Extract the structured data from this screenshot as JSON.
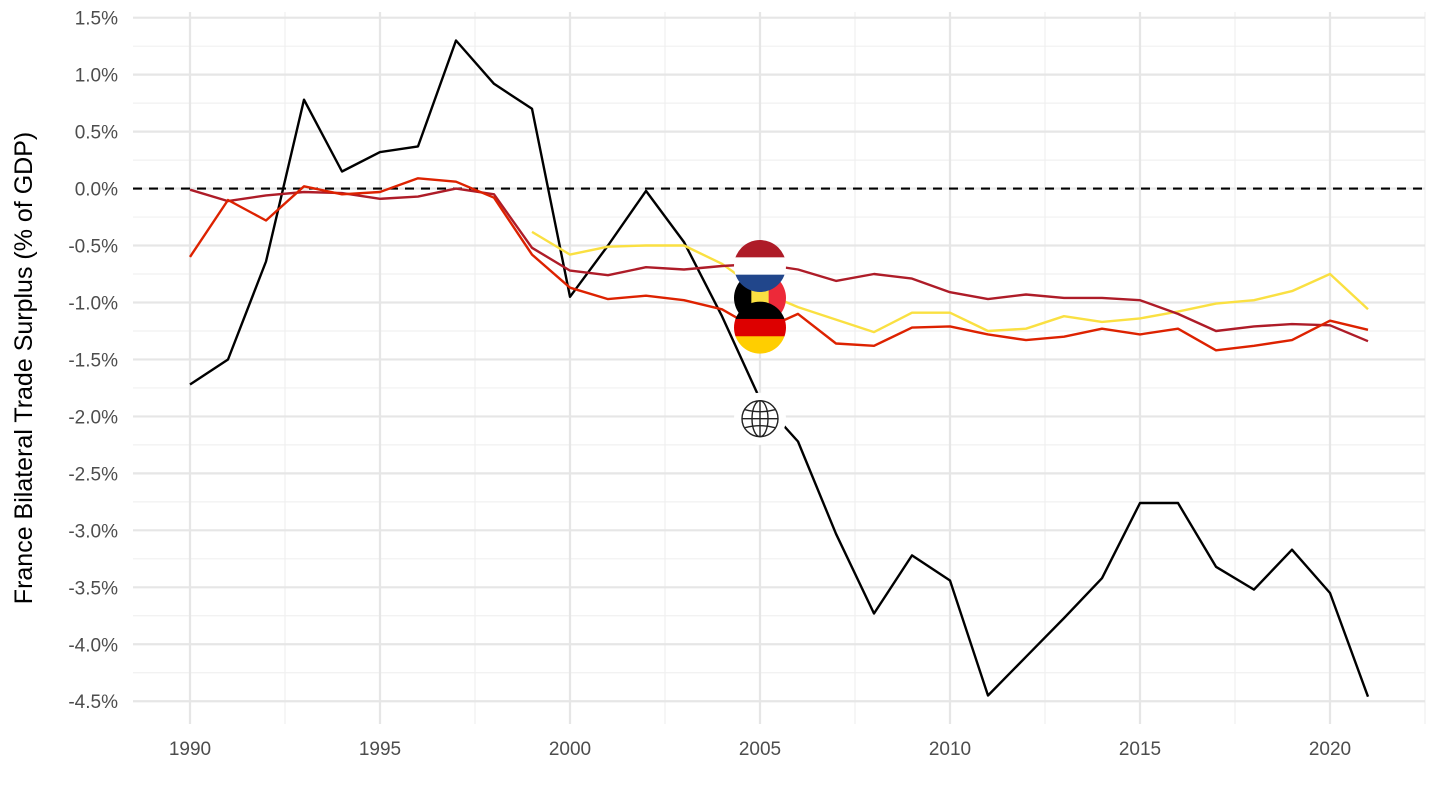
{
  "chart_data": {
    "type": "line",
    "title": "",
    "xlabel": "",
    "ylabel": "France Bilateral Trade Surplus (% of GDP)",
    "xlim": [
      1988.5,
      2022.5
    ],
    "ylim": [
      -4.7,
      1.55
    ],
    "x_ticks": [
      1990,
      1995,
      2000,
      2005,
      2010,
      2015,
      2020
    ],
    "y_ticks": [
      {
        "value": 1.5,
        "label": "1.5%"
      },
      {
        "value": 1.0,
        "label": "1.0%"
      },
      {
        "value": 0.5,
        "label": "0.5%"
      },
      {
        "value": 0.0,
        "label": "0.0%"
      },
      {
        "value": -0.5,
        "label": "-0.5%"
      },
      {
        "value": -1.0,
        "label": "-1.0%"
      },
      {
        "value": -1.5,
        "label": "-1.5%"
      },
      {
        "value": -2.0,
        "label": "-2.0%"
      },
      {
        "value": -2.5,
        "label": "-2.5%"
      },
      {
        "value": -3.0,
        "label": "-3.0%"
      },
      {
        "value": -3.5,
        "label": "-3.5%"
      },
      {
        "value": -4.0,
        "label": "-4.0%"
      },
      {
        "value": -4.5,
        "label": "-4.5%"
      }
    ],
    "grid": true,
    "reference_line": {
      "y": 0,
      "style": "dashed",
      "color": "#000000"
    },
    "series": [
      {
        "icon": "globe-icon",
        "color": "#000000",
        "label_x": 2005,
        "label_y": -2.02,
        "points": [
          [
            1990,
            -1.72
          ],
          [
            1991,
            -1.5
          ],
          [
            1992,
            -0.64
          ],
          [
            1993,
            0.78
          ],
          [
            1994,
            0.15
          ],
          [
            1995,
            0.32
          ],
          [
            1996,
            0.37
          ],
          [
            1997,
            1.3
          ],
          [
            1998,
            0.92
          ],
          [
            1999,
            0.7
          ],
          [
            2000,
            -0.95
          ],
          [
            2001,
            -0.5
          ],
          [
            2002,
            -0.02
          ],
          [
            2003,
            -0.47
          ],
          [
            2004,
            -1.12
          ],
          [
            2005,
            -1.85
          ],
          [
            2006,
            -2.22
          ],
          [
            2007,
            -3.03
          ],
          [
            2008,
            -3.73
          ],
          [
            2009,
            -3.22
          ],
          [
            2010,
            -3.44
          ],
          [
            2011,
            -4.45
          ],
          [
            2012,
            -4.11
          ],
          [
            2013,
            -3.77
          ],
          [
            2014,
            -3.42
          ],
          [
            2015,
            -2.76
          ],
          [
            2016,
            -2.76
          ],
          [
            2017,
            -3.32
          ],
          [
            2018,
            -3.52
          ],
          [
            2019,
            -3.17
          ],
          [
            2020,
            -3.55
          ],
          [
            2021,
            -4.46
          ]
        ]
      },
      {
        "icon": "belgium-flag-icon",
        "color": "#FAE042",
        "label_x": 2005,
        "label_y": -0.96,
        "points": [
          [
            1999,
            -0.38
          ],
          [
            2000,
            -0.58
          ],
          [
            2001,
            -0.51
          ],
          [
            2002,
            -0.5
          ],
          [
            2003,
            -0.5
          ],
          [
            2004,
            -0.66
          ],
          [
            2005,
            -0.9
          ],
          [
            2006,
            -1.04
          ],
          [
            2007,
            -1.15
          ],
          [
            2008,
            -1.26
          ],
          [
            2009,
            -1.09
          ],
          [
            2010,
            -1.09
          ],
          [
            2011,
            -1.25
          ],
          [
            2012,
            -1.23
          ],
          [
            2013,
            -1.12
          ],
          [
            2014,
            -1.17
          ],
          [
            2015,
            -1.14
          ],
          [
            2016,
            -1.08
          ],
          [
            2017,
            -1.01
          ],
          [
            2018,
            -0.98
          ],
          [
            2019,
            -0.9
          ],
          [
            2020,
            -0.75
          ],
          [
            2021,
            -1.06
          ]
        ]
      },
      {
        "icon": "netherlands-flag-icon",
        "color": "#AE1C28",
        "label_x": 2005,
        "label_y": -0.68,
        "points": [
          [
            1990,
            -0.01
          ],
          [
            1991,
            -0.11
          ],
          [
            1992,
            -0.06
          ],
          [
            1993,
            -0.03
          ],
          [
            1994,
            -0.04
          ],
          [
            1995,
            -0.09
          ],
          [
            1996,
            -0.07
          ],
          [
            1997,
            0.0
          ],
          [
            1998,
            -0.05
          ],
          [
            1999,
            -0.52
          ],
          [
            2000,
            -0.72
          ],
          [
            2001,
            -0.76
          ],
          [
            2002,
            -0.69
          ],
          [
            2003,
            -0.71
          ],
          [
            2004,
            -0.68
          ],
          [
            2005,
            -0.66
          ],
          [
            2006,
            -0.71
          ],
          [
            2007,
            -0.81
          ],
          [
            2008,
            -0.75
          ],
          [
            2009,
            -0.79
          ],
          [
            2010,
            -0.91
          ],
          [
            2011,
            -0.97
          ],
          [
            2012,
            -0.93
          ],
          [
            2013,
            -0.96
          ],
          [
            2014,
            -0.96
          ],
          [
            2015,
            -0.98
          ],
          [
            2016,
            -1.1
          ],
          [
            2017,
            -1.25
          ],
          [
            2018,
            -1.21
          ],
          [
            2019,
            -1.19
          ],
          [
            2020,
            -1.2
          ],
          [
            2021,
            -1.34
          ]
        ]
      },
      {
        "icon": "germany-flag-icon",
        "color": "#DD2200",
        "label_x": 2005,
        "label_y": -1.22,
        "points": [
          [
            1990,
            -0.6
          ],
          [
            1991,
            -0.1
          ],
          [
            1992,
            -0.28
          ],
          [
            1993,
            0.02
          ],
          [
            1994,
            -0.05
          ],
          [
            1995,
            -0.03
          ],
          [
            1996,
            0.09
          ],
          [
            1997,
            0.06
          ],
          [
            1998,
            -0.08
          ],
          [
            1999,
            -0.58
          ],
          [
            2000,
            -0.87
          ],
          [
            2001,
            -0.97
          ],
          [
            2002,
            -0.94
          ],
          [
            2003,
            -0.98
          ],
          [
            2004,
            -1.06
          ],
          [
            2005,
            -1.25
          ],
          [
            2006,
            -1.1
          ],
          [
            2007,
            -1.36
          ],
          [
            2008,
            -1.38
          ],
          [
            2009,
            -1.22
          ],
          [
            2010,
            -1.21
          ],
          [
            2011,
            -1.28
          ],
          [
            2012,
            -1.33
          ],
          [
            2013,
            -1.3
          ],
          [
            2014,
            -1.23
          ],
          [
            2015,
            -1.28
          ],
          [
            2016,
            -1.23
          ],
          [
            2017,
            -1.42
          ],
          [
            2018,
            -1.38
          ],
          [
            2019,
            -1.33
          ],
          [
            2020,
            -1.16
          ],
          [
            2021,
            -1.24
          ]
        ]
      }
    ]
  }
}
